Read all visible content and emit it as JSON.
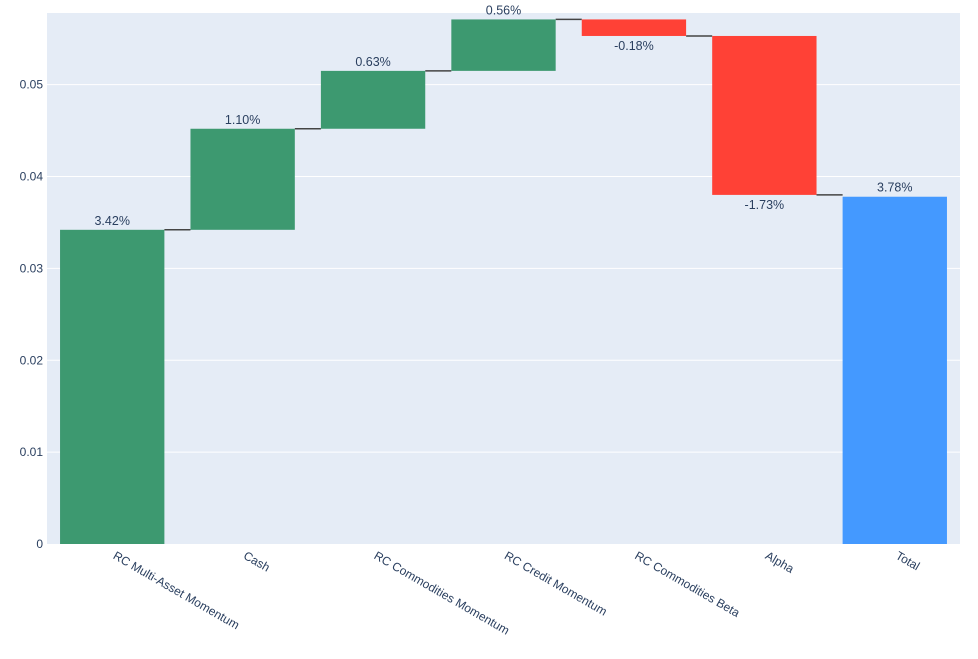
{
  "chart_data": {
    "type": "waterfall",
    "categories": [
      "RC Multi-Asset Momentum",
      "Cash",
      "RC Commodities Momentum",
      "RC Credit Momentum",
      "RC Commodities Beta",
      "Alpha",
      "Total"
    ],
    "values": [
      0.0342,
      0.011,
      0.0063,
      0.0056,
      -0.0018,
      -0.0173,
      0.0378
    ],
    "measure": [
      "relative",
      "relative",
      "relative",
      "relative",
      "relative",
      "relative",
      "total"
    ],
    "data_labels": [
      "3.42%",
      "1.10%",
      "0.63%",
      "0.56%",
      "-0.18%",
      "-1.73%",
      "3.78%"
    ],
    "y_ticks": [
      0,
      0.01,
      0.02,
      0.03,
      0.04,
      0.05
    ],
    "y_tick_labels": [
      "0",
      "0.01",
      "0.02",
      "0.03",
      "0.04",
      "0.05"
    ],
    "ylim": [
      0,
      0.0578
    ],
    "grid": true,
    "colors": {
      "increasing": "#3d9970",
      "decreasing": "#ff4136",
      "total": "#4499ff",
      "plot_background": "#e5ecf6",
      "grid": "#ffffff",
      "connector": "#444444",
      "text": "#2a3f5f"
    }
  }
}
